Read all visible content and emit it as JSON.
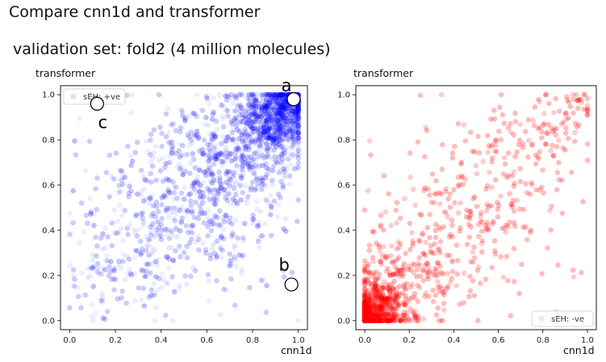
{
  "title": "Compare cnn1d and transformer",
  "subtitle": "validation set: fold2 (4 million molecules)",
  "chart_data": [
    {
      "type": "scatter",
      "xlabel": "cnn1d",
      "ylabel": "transformer",
      "xlim": [
        -0.04,
        1.04
      ],
      "ylim": [
        -0.04,
        1.04
      ],
      "xticks": [
        "0.0",
        "0.2",
        "0.4",
        "0.6",
        "0.8",
        "1.0"
      ],
      "yticks": [
        "0.0",
        "0.2",
        "0.4",
        "0.6",
        "0.8",
        "1.0"
      ],
      "legend": {
        "label": "sEH: +ve",
        "position": "top-left"
      },
      "series": [
        {
          "name": "sEH: +ve",
          "color": "#0000ff",
          "alpha": 0.07,
          "distribution": "concentrated near (1,1) along diagonal, spreading toward (0,0)"
        }
      ],
      "annotations": [
        {
          "label": "a",
          "x": 0.98,
          "y": 0.98
        },
        {
          "label": "b",
          "x": 0.97,
          "y": 0.16
        },
        {
          "label": "c",
          "x": 0.12,
          "y": 0.96
        }
      ]
    },
    {
      "type": "scatter",
      "xlabel": "cnn1d",
      "ylabel": "transformer",
      "xlim": [
        -0.04,
        1.04
      ],
      "ylim": [
        -0.04,
        1.04
      ],
      "xticks": [
        "0.0",
        "0.2",
        "0.4",
        "0.6",
        "0.8",
        "1.0"
      ],
      "yticks": [
        "0.0",
        "0.2",
        "0.4",
        "0.6",
        "0.8",
        "1.0"
      ],
      "legend": {
        "label": "sEH: -ve",
        "position": "bottom-right"
      },
      "series": [
        {
          "name": "sEH: -ve",
          "color": "#ff0000",
          "alpha": 0.07,
          "distribution": "concentrated near (0,0), spreading along diagonal toward (1,1)"
        }
      ]
    }
  ]
}
